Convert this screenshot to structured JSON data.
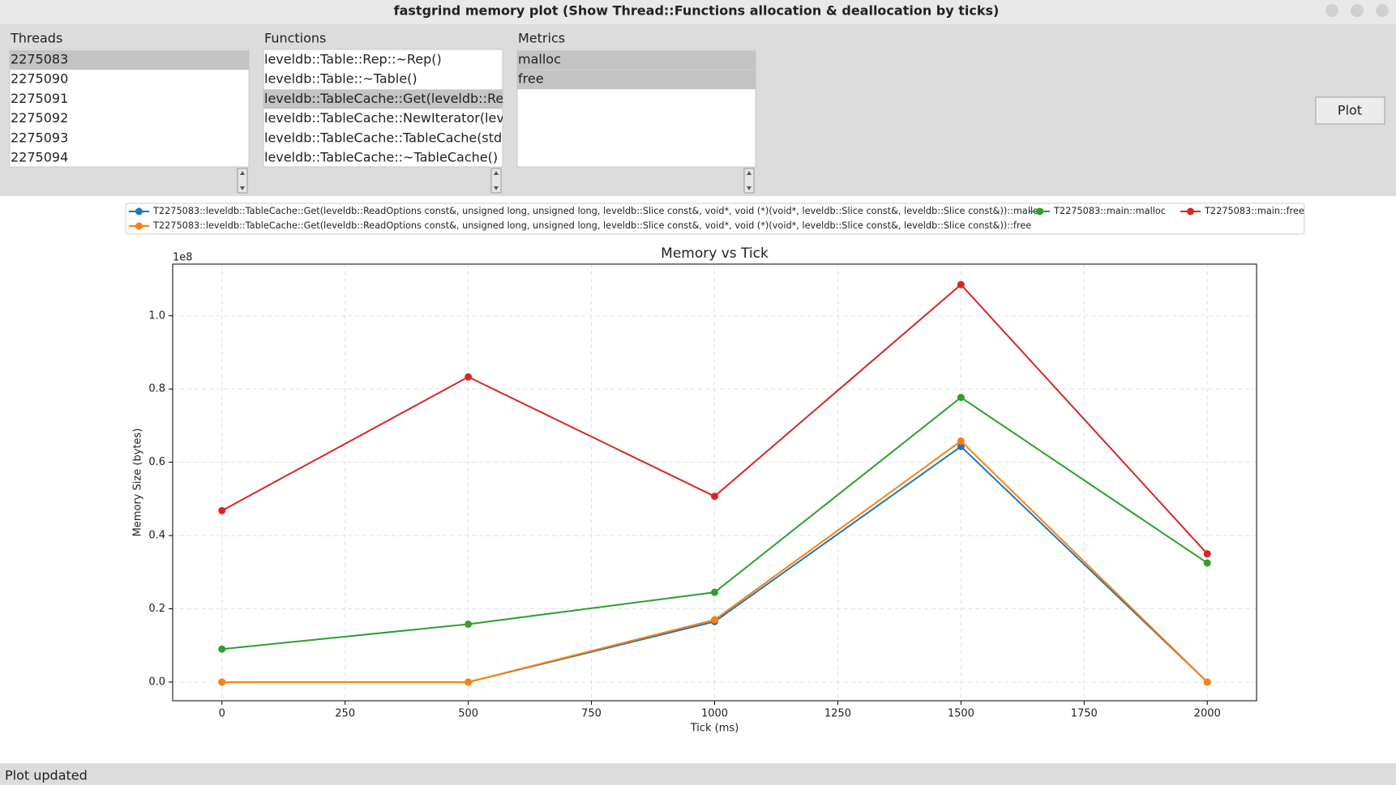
{
  "window": {
    "title": "fastgrind memory plot (Show Thread::Functions allocation & deallocation by ticks)"
  },
  "panels": [
    {
      "label": "Threads",
      "items": [
        "2275083",
        "2275090",
        "2275091",
        "2275092",
        "2275093",
        "2275094"
      ],
      "selected": [
        0
      ]
    },
    {
      "label": "Functions",
      "items": [
        "leveldb::Table::Rep::~Rep()",
        "leveldb::Table::~Table()",
        "leveldb::TableCache::Get(leveldb::ReadC",
        "leveldb::TableCache::NewIterator(leveldb",
        "leveldb::TableCache::TableCache(std::__",
        "leveldb::TableCache::~TableCache()"
      ],
      "selected": [
        2
      ]
    },
    {
      "label": "Metrics",
      "items": [
        "malloc",
        "free"
      ],
      "selected": [
        0,
        1
      ]
    }
  ],
  "button": "Plot",
  "status": "Plot updated",
  "chart_data": {
    "type": "line",
    "title": "Memory vs Tick",
    "x_label": "Tick (ms)",
    "y_label": "Memory Size (bytes)",
    "y_offset_label": "1e8",
    "x": [
      0,
      500,
      1000,
      1500,
      2000
    ],
    "series": [
      {
        "name": "T2275083::leveldb::TableCache::Get(leveldb::ReadOptions const&, unsigned long, unsigned long, leveldb::Slice const&, void*, void (*)(void*, leveldb::Slice const&, leveldb::Slice const&))::malloc",
        "color": "#1f77b4",
        "values": [
          0,
          0,
          0.165,
          0.643,
          0
        ]
      },
      {
        "name": "T2275083::leveldb::TableCache::Get(leveldb::ReadOptions const&, unsigned long, unsigned long, leveldb::Slice const&, void*, void (*)(void*, leveldb::Slice const&, leveldb::Slice const&))::free",
        "color": "#ff7f0e",
        "values": [
          0,
          0,
          0.17,
          0.658,
          0
        ]
      },
      {
        "name": "T2275083::main::malloc",
        "color": "#2ca02c",
        "values": [
          0.09,
          0.158,
          0.245,
          0.777,
          0.325
        ]
      },
      {
        "name": "T2275083::main::free",
        "color": "#d62728",
        "values": [
          0.468,
          0.833,
          0.507,
          1.085,
          0.35
        ]
      }
    ],
    "xlim": [
      -100,
      2100
    ],
    "xticks": [
      0,
      250,
      500,
      750,
      1000,
      1250,
      1500,
      1750,
      2000
    ],
    "ylim": [
      -0.051,
      1.141
    ],
    "yticks": [
      {
        "value": 0,
        "label": "0.0"
      },
      0.2,
      0.4,
      0.6,
      0.8,
      {
        "value": 1,
        "label": "1.0"
      }
    ],
    "grid": true
  }
}
